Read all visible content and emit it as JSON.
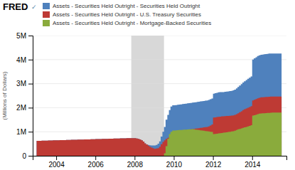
{
  "chart_data": {
    "type": "area",
    "line_style": "step",
    "stacked": false,
    "title": "FRED",
    "annotations": [
      "✓"
    ],
    "ylabel": "(Millions of Dollars)",
    "xlim": [
      2002.8,
      2015.75
    ],
    "xticks": [
      2004,
      2006,
      2008,
      2010,
      2012,
      2014
    ],
    "ylim": [
      0,
      5000000
    ],
    "yticks": [
      0,
      {
        "value": 1000000,
        "label": "1M"
      },
      {
        "value": 2000000,
        "label": "2M"
      },
      {
        "value": 3000000,
        "label": "3M"
      },
      {
        "value": 4000000,
        "label": "4M"
      },
      {
        "value": 5000000,
        "label": "5M"
      }
    ],
    "grid": true,
    "shaded_range": {
      "x": [
        2007.83,
        2009.5
      ],
      "color": "#d8d8d8"
    },
    "x": [
      2003.0,
      2003.08,
      2003.17,
      2003.25,
      2003.33,
      2003.42,
      2003.5,
      2003.58,
      2003.67,
      2003.75,
      2003.83,
      2003.92,
      2004.0,
      2004.08,
      2004.17,
      2004.25,
      2004.33,
      2004.42,
      2004.5,
      2004.58,
      2004.67,
      2004.75,
      2004.83,
      2004.92,
      2005.0,
      2005.08,
      2005.17,
      2005.25,
      2005.33,
      2005.42,
      2005.5,
      2005.58,
      2005.67,
      2005.75,
      2005.83,
      2005.92,
      2006.0,
      2006.08,
      2006.17,
      2006.25,
      2006.33,
      2006.42,
      2006.5,
      2006.58,
      2006.67,
      2006.75,
      2006.83,
      2006.92,
      2007.0,
      2007.08,
      2007.17,
      2007.25,
      2007.33,
      2007.42,
      2007.5,
      2007.58,
      2007.67,
      2007.75,
      2007.83,
      2007.92,
      2008.0,
      2008.08,
      2008.17,
      2008.25,
      2008.33,
      2008.42,
      2008.5,
      2008.58,
      2008.67,
      2008.75,
      2008.83,
      2008.92,
      2009.0,
      2009.08,
      2009.17,
      2009.25,
      2009.33,
      2009.42,
      2009.5,
      2009.58,
      2009.67,
      2009.75,
      2009.83,
      2009.92,
      2010.0,
      2010.08,
      2010.17,
      2010.25,
      2010.33,
      2010.42,
      2010.5,
      2010.58,
      2010.67,
      2010.75,
      2010.83,
      2010.92,
      2011.0,
      2011.08,
      2011.17,
      2011.25,
      2011.33,
      2011.42,
      2011.5,
      2011.58,
      2011.67,
      2011.75,
      2011.83,
      2011.92,
      2012.0,
      2012.08,
      2012.17,
      2012.25,
      2012.33,
      2012.42,
      2012.5,
      2012.58,
      2012.67,
      2012.75,
      2012.83,
      2012.92,
      2013.0,
      2013.08,
      2013.17,
      2013.25,
      2013.33,
      2013.42,
      2013.5,
      2013.58,
      2013.67,
      2013.75,
      2013.83,
      2013.92,
      2014.0,
      2014.08,
      2014.17,
      2014.25,
      2014.33,
      2014.42,
      2014.5,
      2014.58,
      2014.67,
      2014.75,
      2014.83,
      2014.92,
      2015.0,
      2015.08,
      2015.17,
      2015.25,
      2015.33,
      2015.42,
      2015.5
    ],
    "series": [
      {
        "name": "Assets - Securities Held Outright - Securities Held Outright",
        "color": "#4f81bd",
        "values": [
          620000,
          622000,
          624000,
          626000,
          628000,
          630000,
          632000,
          634000,
          636000,
          638000,
          640000,
          642000,
          644000,
          646000,
          648000,
          650000,
          652000,
          654000,
          656000,
          658000,
          660000,
          662000,
          664000,
          666000,
          668000,
          670000,
          672000,
          674000,
          676000,
          678000,
          680000,
          682000,
          684000,
          686000,
          688000,
          690000,
          692000,
          694000,
          696000,
          698000,
          700000,
          702000,
          704000,
          706000,
          708000,
          710000,
          712000,
          714000,
          716000,
          718000,
          720000,
          722000,
          724000,
          726000,
          728000,
          730000,
          730000,
          730000,
          730000,
          730000,
          730000,
          720000,
          700000,
          680000,
          640000,
          590000,
          520000,
          470000,
          450000,
          440000,
          430000,
          430000,
          430000,
          450000,
          500000,
          600000,
          800000,
          1000000,
          1200000,
          1500000,
          1700000,
          1900000,
          2050000,
          2100000,
          2100000,
          2110000,
          2120000,
          2130000,
          2140000,
          2150000,
          2160000,
          2170000,
          2180000,
          2190000,
          2200000,
          2210000,
          2220000,
          2230000,
          2240000,
          2250000,
          2260000,
          2270000,
          2280000,
          2290000,
          2300000,
          2320000,
          2350000,
          2380000,
          2580000,
          2600000,
          2620000,
          2640000,
          2650000,
          2650000,
          2650000,
          2660000,
          2670000,
          2680000,
          2690000,
          2700000,
          2720000,
          2750000,
          2800000,
          2860000,
          2920000,
          2980000,
          3050000,
          3100000,
          3150000,
          3200000,
          3250000,
          3300000,
          4000000,
          4050000,
          4100000,
          4150000,
          4180000,
          4200000,
          4210000,
          4220000,
          4230000,
          4240000,
          4250000,
          4250000,
          4250000,
          4250000,
          4250000,
          4250000,
          4250000,
          4250000,
          4250000
        ]
      },
      {
        "name": "Assets - Securities Held Outright - U.S. Treasury Securities",
        "color": "#be3a34",
        "values": [
          620000,
          622000,
          624000,
          626000,
          628000,
          630000,
          632000,
          634000,
          636000,
          638000,
          640000,
          642000,
          644000,
          646000,
          648000,
          650000,
          652000,
          654000,
          656000,
          658000,
          660000,
          662000,
          664000,
          666000,
          668000,
          670000,
          672000,
          674000,
          676000,
          678000,
          680000,
          682000,
          684000,
          686000,
          688000,
          690000,
          692000,
          694000,
          696000,
          698000,
          700000,
          702000,
          704000,
          706000,
          708000,
          710000,
          712000,
          714000,
          716000,
          718000,
          720000,
          722000,
          724000,
          726000,
          728000,
          730000,
          730000,
          730000,
          730000,
          730000,
          730000,
          720000,
          700000,
          680000,
          640000,
          590000,
          520000,
          470000,
          420000,
          380000,
          340000,
          310000,
          290000,
          300000,
          320000,
          380000,
          480000,
          580000,
          640000,
          700000,
          750000,
          800000,
          850000,
          900000,
          950000,
          970000,
          990000,
          1010000,
          1030000,
          1050000,
          1060000,
          1070000,
          1080000,
          1090000,
          1100000,
          1110000,
          1120000,
          1130000,
          1140000,
          1150000,
          1160000,
          1170000,
          1180000,
          1190000,
          1200000,
          1220000,
          1260000,
          1300000,
          1590000,
          1600000,
          1610000,
          1620000,
          1630000,
          1640000,
          1640000,
          1650000,
          1655000,
          1660000,
          1665000,
          1670000,
          1680000,
          1700000,
          1730000,
          1770000,
          1810000,
          1850000,
          1900000,
          1940000,
          1970000,
          2000000,
          2030000,
          2060000,
          2300000,
          2330000,
          2360000,
          2390000,
          2410000,
          2430000,
          2435000,
          2440000,
          2445000,
          2450000,
          2455000,
          2460000,
          2460000,
          2460000,
          2460000,
          2460000,
          2460000,
          2460000,
          2460000
        ]
      },
      {
        "name": "Assets - Securities Held Outright - Mortgage-Backed Securities",
        "color": "#8aab3c",
        "values": [
          0,
          0,
          0,
          0,
          0,
          0,
          0,
          0,
          0,
          0,
          0,
          0,
          0,
          0,
          0,
          0,
          0,
          0,
          0,
          0,
          0,
          0,
          0,
          0,
          0,
          0,
          0,
          0,
          0,
          0,
          0,
          0,
          0,
          0,
          0,
          0,
          0,
          0,
          0,
          0,
          0,
          0,
          0,
          0,
          0,
          0,
          0,
          0,
          0,
          0,
          0,
          0,
          0,
          0,
          0,
          0,
          0,
          0,
          0,
          0,
          0,
          0,
          0,
          0,
          0,
          0,
          0,
          0,
          0,
          0,
          0,
          0,
          0,
          0,
          0,
          0,
          0,
          0,
          100000,
          400000,
          700000,
          900000,
          1000000,
          1050000,
          1050000,
          1060000,
          1065000,
          1070000,
          1075000,
          1080000,
          1085000,
          1090000,
          1095000,
          1100000,
          1105000,
          1110000,
          1100000,
          1090000,
          1080000,
          1070000,
          1060000,
          1050000,
          1040000,
          1030000,
          1020000,
          1010000,
          1000000,
          990000,
          900000,
          910000,
          920000,
          930000,
          940000,
          950000,
          960000,
          970000,
          980000,
          990000,
          1000000,
          1010000,
          1020000,
          1040000,
          1070000,
          1100000,
          1120000,
          1140000,
          1160000,
          1180000,
          1200000,
          1220000,
          1240000,
          1270000,
          1670000,
          1690000,
          1710000,
          1730000,
          1750000,
          1760000,
          1765000,
          1770000,
          1775000,
          1780000,
          1785000,
          1790000,
          1800000,
          1800000,
          1800000,
          1800000,
          1800000,
          1800000,
          1800000
        ]
      }
    ]
  }
}
